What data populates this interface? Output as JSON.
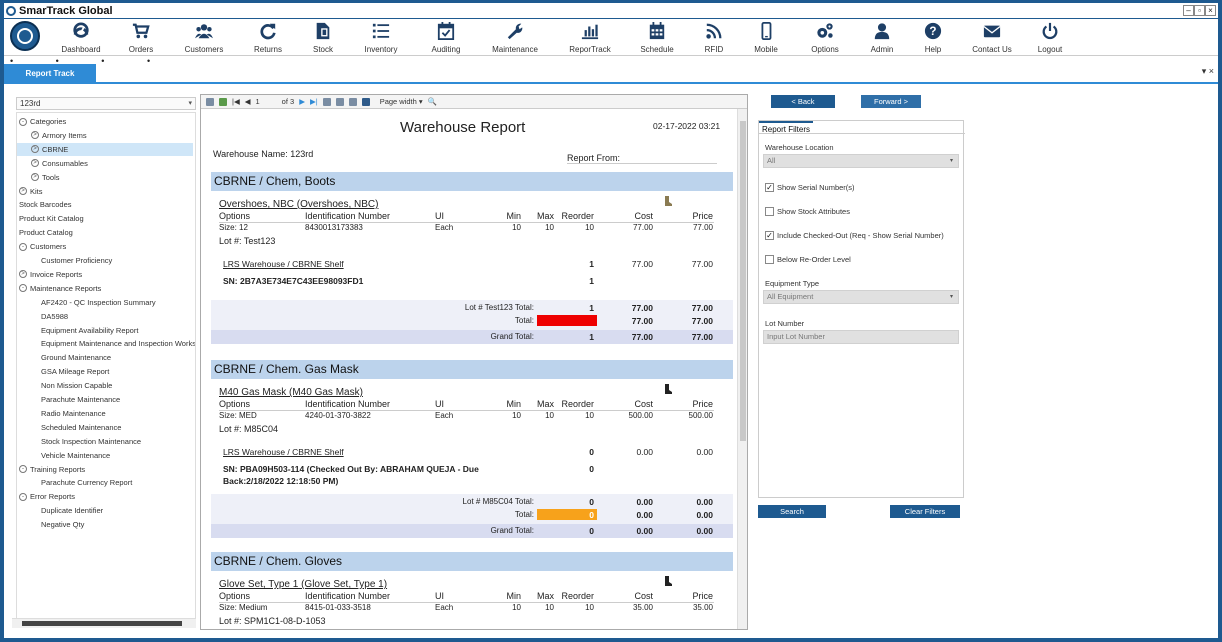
{
  "app": {
    "title": "SmarTrack Global"
  },
  "window_controls": [
    "–",
    "▫",
    "×"
  ],
  "nav": [
    {
      "label": "Dashboard",
      "icon": "dashboard-icon"
    },
    {
      "label": "Orders",
      "icon": "cart-icon"
    },
    {
      "label": "Customers",
      "icon": "users-icon"
    },
    {
      "label": "Returns",
      "icon": "refresh-icon"
    },
    {
      "label": "Stock",
      "icon": "document-icon"
    },
    {
      "label": "Inventory",
      "icon": "list-icon"
    },
    {
      "label": "Auditing",
      "icon": "calendar-check-icon"
    },
    {
      "label": "Maintenance",
      "icon": "wrench-icon"
    },
    {
      "label": "ReporTrack",
      "icon": "bar-chart-icon"
    },
    {
      "label": "Schedule",
      "icon": "calendar-icon"
    },
    {
      "label": "RFID",
      "icon": "rfid-icon"
    },
    {
      "label": "Mobile",
      "icon": "mobile-icon"
    },
    {
      "label": "Options",
      "icon": "gears-icon"
    },
    {
      "label": "Admin",
      "icon": "user-icon"
    },
    {
      "label": "Help",
      "icon": "question-icon"
    },
    {
      "label": "Contact Us",
      "icon": "envelope-icon"
    },
    {
      "label": "Logout",
      "icon": "power-icon"
    }
  ],
  "tab": {
    "label": "Report Track",
    "controls": "▾ ×"
  },
  "sidebar": {
    "warehouse": "123rd",
    "tree": [
      {
        "label": "Categories",
        "level": 0,
        "expander": "-"
      },
      {
        "label": "Armory Items",
        "level": 1,
        "expander": ">"
      },
      {
        "label": "CBRNE",
        "level": 1,
        "expander": ">",
        "selected": true
      },
      {
        "label": "Consumables",
        "level": 1,
        "expander": ">"
      },
      {
        "label": "Tools",
        "level": 1,
        "expander": ">"
      },
      {
        "label": "Kits",
        "level": 0,
        "expander": ">"
      },
      {
        "label": "Stock Barcodes",
        "level": 0
      },
      {
        "label": "Product Kit Catalog",
        "level": 0
      },
      {
        "label": "Product Catalog",
        "level": 0
      },
      {
        "label": "Customers",
        "level": 0,
        "expander": "-"
      },
      {
        "label": "Customer Proficiency",
        "level": 2
      },
      {
        "label": "Invoice Reports",
        "level": 0,
        "expander": ">"
      },
      {
        "label": "Maintenance Reports",
        "level": 0,
        "expander": "-"
      },
      {
        "label": "AF2420 - QC Inspection Summary",
        "level": 2
      },
      {
        "label": "DA5988",
        "level": 2
      },
      {
        "label": "Equipment Availability Report",
        "level": 2
      },
      {
        "label": "Equipment Maintenance and Inspection Works...",
        "level": 2
      },
      {
        "label": "Ground Maintenance",
        "level": 2
      },
      {
        "label": "GSA Mileage Report",
        "level": 2
      },
      {
        "label": "Non Mission Capable",
        "level": 2
      },
      {
        "label": "Parachute Maintenance",
        "level": 2
      },
      {
        "label": "Radio Maintenance",
        "level": 2
      },
      {
        "label": "Scheduled Maintenance",
        "level": 2
      },
      {
        "label": "Stock Inspection Maintenance",
        "level": 2
      },
      {
        "label": "Vehicle Maintenance",
        "level": 2
      },
      {
        "label": "Training Reports",
        "level": 0,
        "expander": "-"
      },
      {
        "label": "Parachute Currency Report",
        "level": 2
      },
      {
        "label": "Error Reports",
        "level": 0,
        "expander": "-"
      },
      {
        "label": "Duplicate Identifier",
        "level": 2
      },
      {
        "label": "Negative Qty",
        "level": 2
      }
    ]
  },
  "viewer": {
    "page": "1",
    "of_pages": "of 3",
    "zoom": "Page width"
  },
  "report": {
    "title": "Warehouse Report",
    "date": "02-17-2022 03:21",
    "warehouse_name": "Warehouse Name: 123rd",
    "report_from": "Report From:",
    "columns": {
      "options": "Options",
      "id": "Identification Number",
      "ui": "UI",
      "min": "Min",
      "max": "Max",
      "reorder": "Reorder",
      "cost": "Cost",
      "price": "Price"
    },
    "sections": [
      {
        "heading": "CBRNE / Chem, Boots",
        "item": "Overshoes, NBC (Overshoes, NBC)",
        "size": "Size: 12",
        "id_number": "8430013173383",
        "ui": "Each",
        "min": "10",
        "max": "10",
        "reorder": "10",
        "cost": "77.00",
        "price": "77.00",
        "lot": "Lot #:  Test123",
        "shelf": "LRS Warehouse / CBRNE Shelf",
        "shelf_qty": "1",
        "shelf_cost": "77.00",
        "shelf_price": "77.00",
        "sn": "SN: 2B7A3E734E7C43EE98093FD1",
        "sn_qty": "1",
        "lot_total_label": "Lot # Test123 Total:",
        "lot_total_qty": "1",
        "lot_total_cost": "77.00",
        "lot_total_price": "77.00",
        "total_label": "Total:",
        "total_qty": "1",
        "total_cost": "77.00",
        "total_price": "77.00",
        "total_color": "#ee0000",
        "grand_label": "Grand Total:",
        "grand_qty": "1",
        "grand_cost": "77.00",
        "grand_price": "77.00"
      },
      {
        "heading": "CBRNE / Chem. Gas Mask",
        "item": "M40 Gas Mask (M40 Gas Mask)",
        "size": "Size: MED",
        "id_number": "4240-01-370-3822",
        "ui": "Each",
        "min": "10",
        "max": "10",
        "reorder": "10",
        "cost": "500.00",
        "price": "500.00",
        "lot": "Lot #:  M85C04",
        "shelf": "LRS Warehouse / CBRNE Shelf",
        "shelf_qty": "0",
        "shelf_cost": "0.00",
        "shelf_price": "0.00",
        "sn": "SN: PBA09H503-114  (Checked Out By: ABRAHAM QUEJA - Due",
        "sn2": "Back:2/18/2022 12:18:50 PM)",
        "sn_qty": "0",
        "lot_total_label": "Lot # M85C04 Total:",
        "lot_total_qty": "0",
        "lot_total_cost": "0.00",
        "lot_total_price": "0.00",
        "total_label": "Total:",
        "total_qty": "0",
        "total_cost": "0.00",
        "total_price": "0.00",
        "total_color": "#f7a21b",
        "grand_label": "Grand Total:",
        "grand_qty": "0",
        "grand_cost": "0.00",
        "grand_price": "0.00"
      },
      {
        "heading": "CBRNE / Chem. Gloves",
        "item": "Glove Set, Type 1 (Glove Set, Type 1)",
        "size": "Size: Medium",
        "id_number": "8415-01-033-3518",
        "ui": "Each",
        "min": "10",
        "max": "10",
        "reorder": "10",
        "cost": "35.00",
        "price": "35.00",
        "lot": "Lot #:  SPM1C1-08-D-1053"
      }
    ]
  },
  "filters": {
    "back": "< Back",
    "forward": "Forward >",
    "tab": "Report Filters",
    "warehouse_location_label": "Warehouse Location",
    "warehouse_location_value": "All",
    "show_serial": "Show Serial Number(s)",
    "show_serial_checked": true,
    "show_stock_attr": "Show Stock Attributes",
    "show_stock_attr_checked": false,
    "include_checked_out": "Include Checked-Out (Req - Show Serial Number)",
    "include_checked_out_checked": true,
    "below_reorder": "Below Re-Order Level",
    "below_reorder_checked": false,
    "equipment_type_label": "Equipment Type",
    "equipment_type_value": "All Equipment",
    "lot_number_label": "Lot Number",
    "lot_number_placeholder": "Input Lot Number",
    "search": "Search",
    "clear": "Clear Filters"
  }
}
